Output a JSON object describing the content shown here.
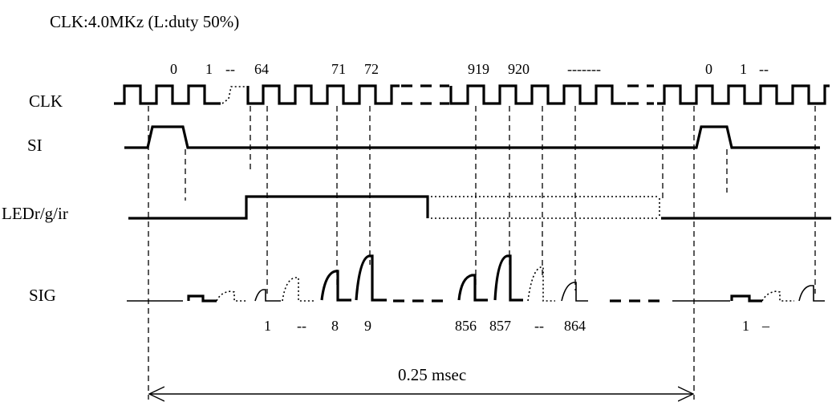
{
  "header": {
    "clock_spec": "CLK:4.0MKz (L:duty 50%)"
  },
  "signals": {
    "clk": "CLK",
    "si": "SI",
    "led": "LEDr/g/ir",
    "sig": "SIG"
  },
  "clock_counts": {
    "c0": "0",
    "c1": "1",
    "cdash": "--",
    "c64": "64",
    "c71": "71",
    "c72": "72",
    "c919": "919",
    "c920": "920",
    "cdots": "-------",
    "c0b": "0",
    "c1b": "1",
    "cdashb": "--"
  },
  "pixel_counts": {
    "p1": "1",
    "pdash": "--",
    "p8": "8",
    "p9": "9",
    "p856": "856",
    "p857": "857",
    "pdash2": "--",
    "p864": "864",
    "p1b": "1",
    "pdashb": "–"
  },
  "period": {
    "label": "0.25 msec"
  }
}
